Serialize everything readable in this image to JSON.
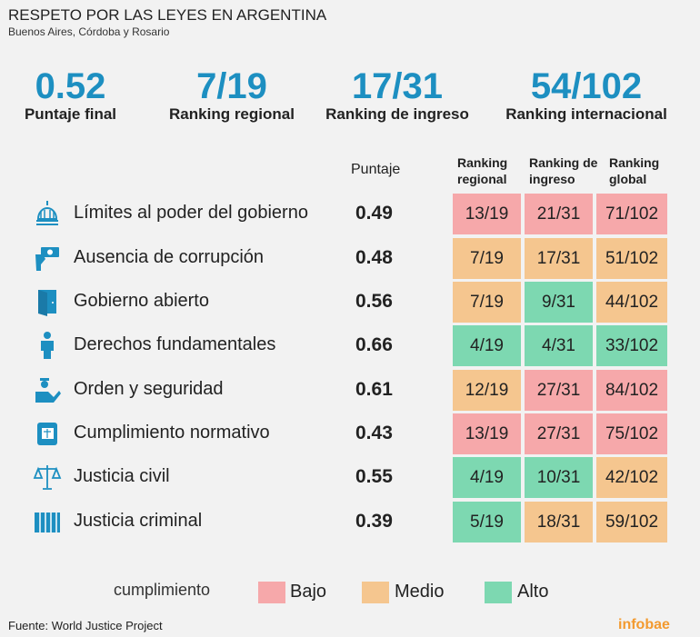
{
  "title": "RESPETO POR LAS LEYES EN ARGENTINA",
  "subtitle": "Buenos Aires, Córdoba y Rosario",
  "kpis": [
    {
      "value": "0.52",
      "label": "Puntaje final"
    },
    {
      "value": "7/19",
      "label": "Ranking regional"
    },
    {
      "value": "17/31",
      "label": "Ranking de ingreso"
    },
    {
      "value": "54/102",
      "label": "Ranking internacional"
    }
  ],
  "colors": {
    "accent": "#1d8fc1",
    "bajo": "#f6a8aa",
    "medio": "#f5c68f",
    "alto": "#7dd8b1",
    "background": "#f2f2f2",
    "logo": "#f39a2f"
  },
  "chart_data": {
    "type": "table",
    "columns": [
      "Puntaje",
      "Ranking regional",
      "Ranking de ingreso",
      "Ranking global"
    ],
    "rows": [
      {
        "icon": "capitol-dome-icon",
        "label": "Límites al poder del gobierno",
        "score": "0.49",
        "cells": [
          {
            "v": "13/19",
            "level": "bajo"
          },
          {
            "v": "21/31",
            "level": "bajo"
          },
          {
            "v": "71/102",
            "level": "bajo"
          }
        ]
      },
      {
        "icon": "money-hand-icon",
        "label": "Ausencia de corrupción",
        "score": "0.48",
        "cells": [
          {
            "v": "7/19",
            "level": "medio"
          },
          {
            "v": "17/31",
            "level": "medio"
          },
          {
            "v": "51/102",
            "level": "medio"
          }
        ]
      },
      {
        "icon": "open-door-icon",
        "label": "Gobierno abierto",
        "score": "0.56",
        "cells": [
          {
            "v": "7/19",
            "level": "medio"
          },
          {
            "v": "9/31",
            "level": "alto"
          },
          {
            "v": "44/102",
            "level": "medio"
          }
        ]
      },
      {
        "icon": "person-icon",
        "label": "Derechos fundamentales",
        "score": "0.66",
        "cells": [
          {
            "v": "4/19",
            "level": "alto"
          },
          {
            "v": "4/31",
            "level": "alto"
          },
          {
            "v": "33/102",
            "level": "alto"
          }
        ]
      },
      {
        "icon": "police-officer-icon",
        "label": "Orden y seguridad",
        "score": "0.61",
        "cells": [
          {
            "v": "12/19",
            "level": "medio"
          },
          {
            "v": "27/31",
            "level": "bajo"
          },
          {
            "v": "84/102",
            "level": "bajo"
          }
        ]
      },
      {
        "icon": "law-book-icon",
        "label": "Cumplimiento normativo",
        "score": "0.43",
        "cells": [
          {
            "v": "13/19",
            "level": "bajo"
          },
          {
            "v": "27/31",
            "level": "bajo"
          },
          {
            "v": "75/102",
            "level": "bajo"
          }
        ]
      },
      {
        "icon": "scales-icon",
        "label": "Justicia civil",
        "score": "0.55",
        "cells": [
          {
            "v": "4/19",
            "level": "alto"
          },
          {
            "v": "10/31",
            "level": "alto"
          },
          {
            "v": "42/102",
            "level": "medio"
          }
        ]
      },
      {
        "icon": "prison-bars-icon",
        "label": "Justicia criminal",
        "score": "0.39",
        "cells": [
          {
            "v": "5/19",
            "level": "alto"
          },
          {
            "v": "18/31",
            "level": "medio"
          },
          {
            "v": "59/102",
            "level": "medio"
          }
        ]
      }
    ]
  },
  "legend": {
    "title": "cumplimiento",
    "items": [
      {
        "label": "Bajo",
        "level": "bajo"
      },
      {
        "label": "Medio",
        "level": "medio"
      },
      {
        "label": "Alto",
        "level": "alto"
      }
    ]
  },
  "headers": {
    "score": "Puntaje",
    "regional": [
      "Ranking",
      "regional"
    ],
    "ingreso": [
      "Ranking de",
      "ingreso"
    ],
    "global": [
      "Ranking",
      "global"
    ]
  },
  "source": "Fuente: World Justice Project",
  "logo": "infobae"
}
